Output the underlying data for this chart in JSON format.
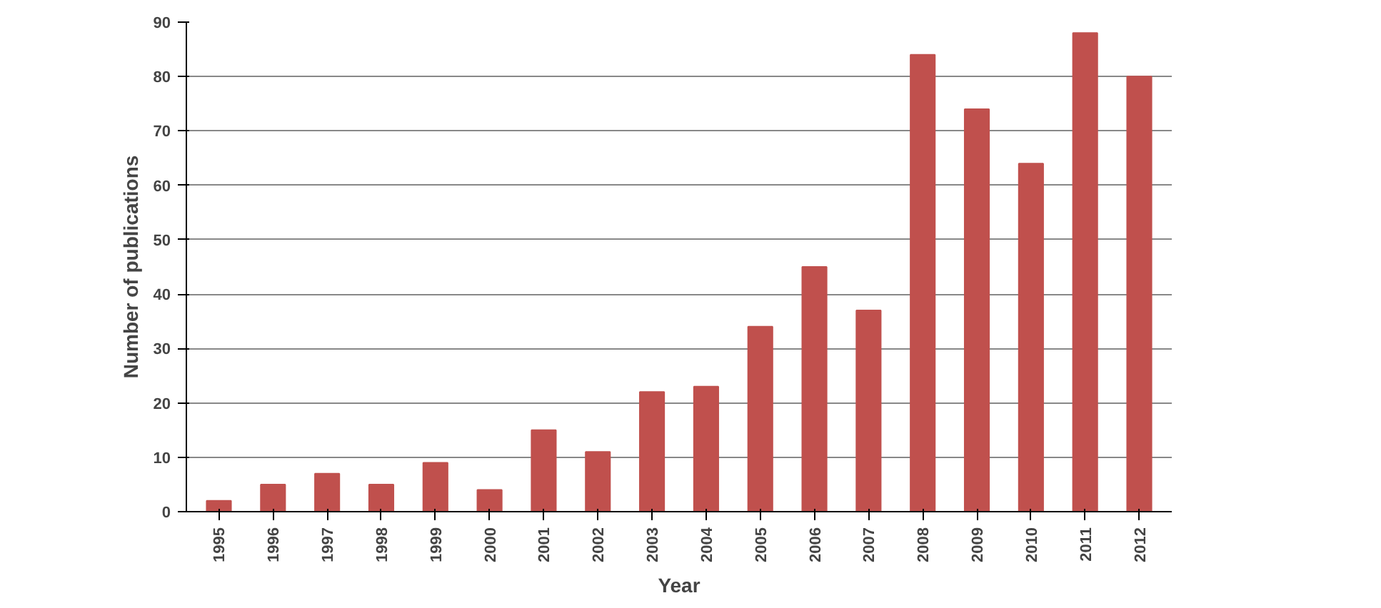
{
  "chart_data": {
    "type": "bar",
    "xlabel": "Year",
    "ylabel": "Number of publications",
    "categories": [
      "1995",
      "1996",
      "1997",
      "1998",
      "1999",
      "2000",
      "2001",
      "2002",
      "2003",
      "2004",
      "2005",
      "2006",
      "2007",
      "2008",
      "2009",
      "2010",
      "2011",
      "2012"
    ],
    "values": [
      2,
      5,
      7,
      5,
      9,
      4,
      15,
      11,
      22,
      23,
      34,
      45,
      37,
      84,
      74,
      64,
      88,
      80
    ],
    "color": "#c0504d",
    "ylim": [
      0,
      90
    ],
    "yticks": [
      0,
      10,
      20,
      30,
      40,
      50,
      60,
      70,
      80,
      90
    ],
    "grid": "y"
  }
}
